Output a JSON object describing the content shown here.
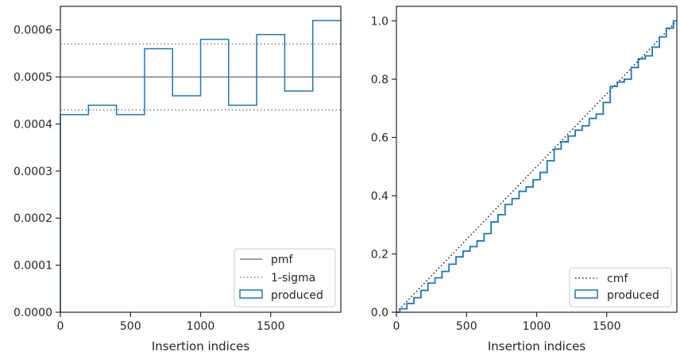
{
  "chart_data": [
    {
      "type": "step-histogram",
      "xlabel": "Insertion indices",
      "ylabel": "",
      "xlim": [
        0,
        2000
      ],
      "ylim": [
        0,
        0.00065
      ],
      "xticks": [
        0,
        500,
        1000,
        1500
      ],
      "xtick_labels": [
        "0",
        "500",
        "1000",
        "1500"
      ],
      "yticks": [
        0,
        0.0001,
        0.0002,
        0.0003,
        0.0004,
        0.0005,
        0.0006
      ],
      "ytick_labels": [
        "0.0000",
        "0.0001",
        "0.0002",
        "0.0003",
        "0.0004",
        "0.0005",
        "0.0006"
      ],
      "bin_edges": [
        0,
        200,
        400,
        600,
        800,
        1000,
        1200,
        1400,
        1600,
        1800,
        2000
      ],
      "values": [
        0.00042,
        0.00044,
        0.00042,
        0.00056,
        0.00046,
        0.00058,
        0.00044,
        0.00059,
        0.00047,
        0.00062
      ],
      "pmf": 0.0005,
      "sigma_band": [
        0.00043,
        0.00057
      ],
      "legend": {
        "placement": "lower-right",
        "entries": [
          {
            "label": "pmf",
            "style": "solid",
            "color": "#808080"
          },
          {
            "label": "1-sigma",
            "style": "dotted",
            "color": "#808080"
          },
          {
            "label": "produced",
            "style": "patch",
            "color": "#1f77b4"
          }
        ]
      }
    },
    {
      "type": "line",
      "xlabel": "Insertion indices",
      "ylabel": "",
      "xlim": [
        0,
        2000
      ],
      "ylim": [
        0,
        1.05
      ],
      "xticks": [
        0,
        500,
        1000,
        1500
      ],
      "xtick_labels": [
        "0",
        "500",
        "1000",
        "1500"
      ],
      "yticks": [
        0,
        0.2,
        0.4,
        0.6,
        0.8,
        1.0
      ],
      "ytick_labels": [
        "0.0",
        "0.2",
        "0.4",
        "0.6",
        "0.8",
        "1.0"
      ],
      "cmf": {
        "x": [
          0,
          2000
        ],
        "y": [
          0,
          1
        ]
      },
      "produced": {
        "x": [
          0,
          50,
          100,
          150,
          200,
          250,
          300,
          350,
          400,
          450,
          500,
          550,
          600,
          650,
          700,
          750,
          800,
          850,
          900,
          950,
          1000,
          1050,
          1100,
          1150,
          1200,
          1250,
          1300,
          1350,
          1400,
          1450,
          1500,
          1550,
          1600,
          1650,
          1700,
          1750,
          1800,
          1850,
          1900,
          1950,
          2000
        ],
        "y": [
          0,
          0.012,
          0.03,
          0.05,
          0.075,
          0.1,
          0.118,
          0.14,
          0.165,
          0.19,
          0.21,
          0.225,
          0.245,
          0.27,
          0.31,
          0.335,
          0.37,
          0.39,
          0.415,
          0.43,
          0.455,
          0.48,
          0.52,
          0.56,
          0.585,
          0.605,
          0.625,
          0.64,
          0.665,
          0.68,
          0.72,
          0.775,
          0.79,
          0.8,
          0.84,
          0.87,
          0.88,
          0.91,
          0.945,
          0.975,
          1.0
        ]
      },
      "legend": {
        "placement": "lower-right",
        "entries": [
          {
            "label": "cmf",
            "style": "dotted",
            "color": "#000000"
          },
          {
            "label": "produced",
            "style": "patch",
            "color": "#1f77b4"
          }
        ]
      }
    }
  ]
}
